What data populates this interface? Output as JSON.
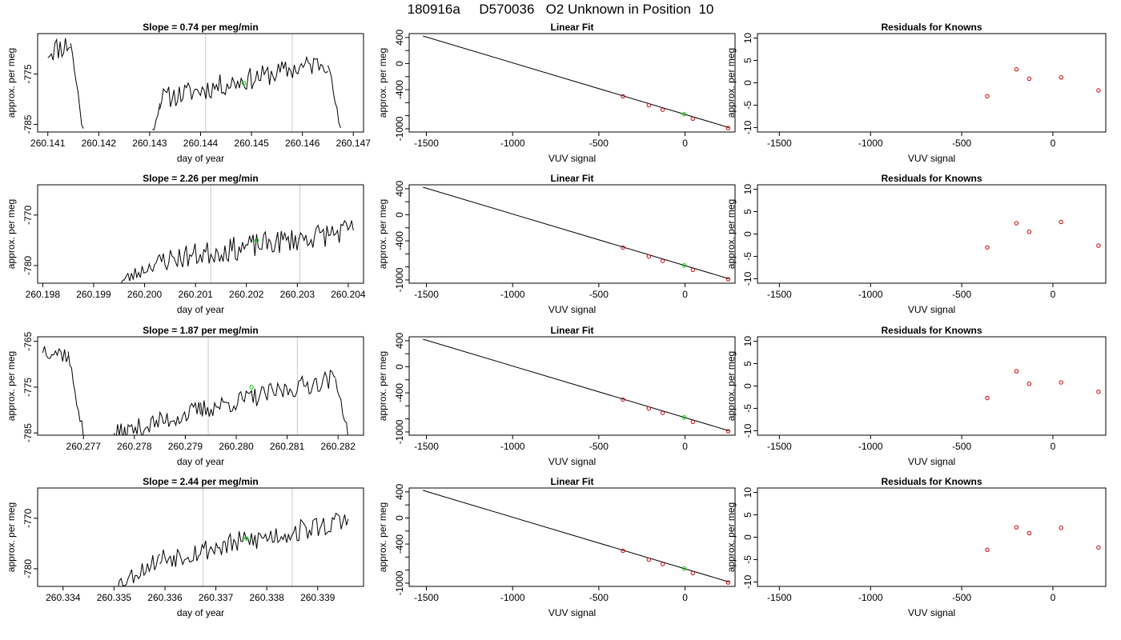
{
  "header": {
    "title": "180916a     D570036   O2 Unknown in Position  10"
  },
  "colors": {
    "series_line": "#000000",
    "unknown_point": "#00cc00",
    "known_point": "#cc0000",
    "marker_line": "#c8c8c8",
    "fit_line": "#000000"
  },
  "chart_data": [
    {
      "type": "line",
      "title": "Slope =  0.74  per meg/min",
      "xlabel": "day of year",
      "ylabel": "approx. per meg",
      "xlim": [
        260.1408,
        260.1472
      ],
      "ylim": [
        -786.5,
        -767.0
      ],
      "xticks": [
        260.141,
        260.142,
        260.143,
        260.144,
        260.145,
        260.146,
        260.147
      ],
      "xtick_labels": [
        "260.141",
        "260.142",
        "260.143",
        "260.144",
        "260.145",
        "260.146",
        "260.147"
      ],
      "yticks": [
        -785,
        -775
      ],
      "ytick_labels": [
        "-785",
        "-775"
      ],
      "vlines": [
        260.1441,
        260.1458
      ],
      "unknown_point": {
        "x": 260.14485,
        "y": -776.8
      },
      "series_seed": 11,
      "segments": [
        {
          "x0": 260.141,
          "x1": 260.14145,
          "y0": -770.5,
          "y1": -769.0,
          "noise": 2.5
        },
        {
          "x0": 260.14145,
          "x1": 260.1417,
          "y0": -769.0,
          "y1": -786.5,
          "noise": 1.5
        },
        {
          "x0": 260.14305,
          "x1": 260.1432,
          "y0": -786.5,
          "y1": -781.0,
          "noise": 1.0
        },
        {
          "x0": 260.1432,
          "x1": 260.1465,
          "y0": -780.0,
          "y1": -772.5,
          "noise": 2.2
        },
        {
          "x0": 260.1465,
          "x1": 260.14675,
          "y0": -772.5,
          "y1": -786.5,
          "noise": 1.0
        }
      ]
    },
    {
      "type": "scatter",
      "title": "Linear Fit",
      "xlabel": "VUV signal",
      "ylabel": "approx. per meg",
      "xlim": [
        -1600,
        290
      ],
      "ylim": [
        -1050,
        460
      ],
      "xticks": [
        -1500,
        -1000,
        -500,
        0
      ],
      "xtick_labels": [
        "-1500",
        "-1000",
        "-500",
        "0"
      ],
      "yticks": [
        400,
        0,
        -400,
        -1000
      ],
      "ytick_labels": [
        "400",
        "0",
        "-400",
        "-1000"
      ],
      "ytick_minor": [
        200,
        -200,
        -600,
        -800
      ],
      "fit_line": {
        "x": [
          -1520,
          255
        ],
        "y": [
          423,
          -982
        ]
      },
      "knowns": {
        "x": [
          -360,
          -210,
          -130,
          45,
          250
        ],
        "y": [
          -504,
          -640,
          -708,
          -845,
          -989
        ]
      },
      "unknown_point": {
        "x": -5,
        "y": -777
      }
    },
    {
      "type": "scatter",
      "title": "Residuals for Knowns",
      "xlabel": "VUV signal",
      "ylabel": "approx. per meg",
      "xlim": [
        -1620,
        290
      ],
      "ylim": [
        -11,
        11
      ],
      "xticks": [
        -1500,
        -1000,
        -500,
        0
      ],
      "xtick_labels": [
        "-1500",
        "-1000",
        "-500",
        "0"
      ],
      "yticks": [
        10,
        5,
        0,
        -5,
        -10
      ],
      "ytick_labels": [
        "10",
        "5",
        "0",
        "-5",
        "-10"
      ],
      "knowns": {
        "x": [
          -360,
          -200,
          -130,
          45,
          250
        ],
        "y": [
          -3.0,
          3.0,
          0.9,
          1.2,
          -1.7
        ]
      }
    },
    {
      "type": "line",
      "title": "Slope =  2.26  per meg/min",
      "xlabel": "day of year",
      "ylabel": "approx. per meg",
      "xlim": [
        260.1979,
        260.2043
      ],
      "ylim": [
        -783.5,
        -764.0
      ],
      "xticks": [
        260.198,
        260.199,
        260.2,
        260.201,
        260.202,
        260.203,
        260.204
      ],
      "xtick_labels": [
        "260.198",
        "260.199",
        "260.200",
        "260.201",
        "260.202",
        "260.203",
        "260.204"
      ],
      "yticks": [
        -780,
        -770
      ],
      "ytick_labels": [
        "-780",
        "-770"
      ],
      "vlines": [
        260.2013,
        260.20305
      ],
      "unknown_point": {
        "x": 260.2022,
        "y": -775.0
      },
      "series_seed": 23,
      "segments": [
        {
          "x0": 260.1995,
          "x1": 260.2003,
          "y0": -783.5,
          "y1": -779.0,
          "noise": 1.5
        },
        {
          "x0": 260.2003,
          "x1": 260.2041,
          "y0": -779.0,
          "y1": -773.0,
          "noise": 2.4
        }
      ]
    },
    {
      "type": "scatter",
      "title": "Linear Fit",
      "xlabel": "VUV signal",
      "ylabel": "approx. per meg",
      "xlim": [
        -1600,
        290
      ],
      "ylim": [
        -1050,
        460
      ],
      "xticks": [
        -1500,
        -1000,
        -500,
        0
      ],
      "xtick_labels": [
        "-1500",
        "-1000",
        "-500",
        "0"
      ],
      "yticks": [
        400,
        0,
        -400,
        -1000
      ],
      "ytick_labels": [
        "400",
        "0",
        "-400",
        "-1000"
      ],
      "ytick_minor": [
        200,
        -200,
        -600,
        -800
      ],
      "fit_line": {
        "x": [
          -1520,
          255
        ],
        "y": [
          423,
          -982
        ]
      },
      "knowns": {
        "x": [
          -360,
          -210,
          -130,
          45,
          250
        ],
        "y": [
          -504,
          -640,
          -708,
          -845,
          -989
        ]
      },
      "unknown_point": {
        "x": -5,
        "y": -777
      }
    },
    {
      "type": "scatter",
      "title": "Residuals for Knowns",
      "xlabel": "VUV signal",
      "ylabel": "approx. per meg",
      "xlim": [
        -1620,
        290
      ],
      "ylim": [
        -11,
        11
      ],
      "xticks": [
        -1500,
        -1000,
        -500,
        0
      ],
      "xtick_labels": [
        "-1500",
        "-1000",
        "-500",
        "0"
      ],
      "yticks": [
        10,
        5,
        0,
        -5,
        -10
      ],
      "ytick_labels": [
        "10",
        "5",
        "0",
        "-5",
        "-10"
      ],
      "knowns": {
        "x": [
          -360,
          -200,
          -130,
          45,
          250
        ],
        "y": [
          -3.0,
          2.4,
          0.5,
          2.7,
          -2.6
        ]
      }
    },
    {
      "type": "line",
      "title": "Slope =  1.87  per meg/min",
      "xlabel": "day of year",
      "ylabel": "approx. per meg",
      "xlim": [
        260.2761,
        260.2825
      ],
      "ylim": [
        -785.5,
        -764.0
      ],
      "xticks": [
        260.277,
        260.278,
        260.279,
        260.28,
        260.281,
        260.282
      ],
      "xtick_labels": [
        "260.277",
        "260.278",
        "260.279",
        "260.280",
        "260.281",
        "260.282"
      ],
      "yticks": [
        -785,
        -775,
        -765
      ],
      "ytick_labels": [
        "-785",
        "-775",
        "-765"
      ],
      "vlines": [
        260.27945,
        260.2812
      ],
      "unknown_point": {
        "x": 260.2803,
        "y": -775.0
      },
      "series_seed": 37,
      "segments": [
        {
          "x0": 260.2762,
          "x1": 260.2767,
          "y0": -766.5,
          "y1": -768.0,
          "noise": 2.0
        },
        {
          "x0": 260.2767,
          "x1": 260.277,
          "y0": -768.0,
          "y1": -785.5,
          "noise": 1.5
        },
        {
          "x0": 260.2776,
          "x1": 260.2793,
          "y0": -785.5,
          "y1": -780.0,
          "noise": 2.2
        },
        {
          "x0": 260.2793,
          "x1": 260.28195,
          "y0": -780.0,
          "y1": -773.0,
          "noise": 2.2
        },
        {
          "x0": 260.28195,
          "x1": 260.2822,
          "y0": -773.0,
          "y1": -785.5,
          "noise": 1.0
        }
      ]
    },
    {
      "type": "scatter",
      "title": "Linear Fit",
      "xlabel": "VUV signal",
      "ylabel": "approx. per meg",
      "xlim": [
        -1600,
        290
      ],
      "ylim": [
        -1050,
        460
      ],
      "xticks": [
        -1500,
        -1000,
        -500,
        0
      ],
      "xtick_labels": [
        "-1500",
        "-1000",
        "-500",
        "0"
      ],
      "yticks": [
        400,
        0,
        -400,
        -1000
      ],
      "ytick_labels": [
        "400",
        "0",
        "-400",
        "-1000"
      ],
      "ytick_minor": [
        200,
        -200,
        -600,
        -800
      ],
      "fit_line": {
        "x": [
          -1520,
          255
        ],
        "y": [
          423,
          -982
        ]
      },
      "knowns": {
        "x": [
          -360,
          -210,
          -130,
          45,
          250
        ],
        "y": [
          -504,
          -640,
          -708,
          -845,
          -989
        ]
      },
      "unknown_point": {
        "x": -5,
        "y": -777
      }
    },
    {
      "type": "scatter",
      "title": "Residuals for Knowns",
      "xlabel": "VUV signal",
      "ylabel": "approx. per meg",
      "xlim": [
        -1620,
        290
      ],
      "ylim": [
        -11,
        11
      ],
      "xticks": [
        -1500,
        -1000,
        -500,
        0
      ],
      "xtick_labels": [
        "-1500",
        "-1000",
        "-500",
        "0"
      ],
      "yticks": [
        10,
        5,
        0,
        -5,
        -10
      ],
      "ytick_labels": [
        "10",
        "5",
        "0",
        "-5",
        "-10"
      ],
      "knowns": {
        "x": [
          -360,
          -200,
          -130,
          45,
          250
        ],
        "y": [
          -2.7,
          3.3,
          0.5,
          0.8,
          -1.3
        ]
      }
    },
    {
      "type": "line",
      "title": "Slope =  2.44  per meg/min",
      "xlabel": "day of year",
      "ylabel": "approx. per meg",
      "xlim": [
        260.3335,
        260.3399
      ],
      "ylim": [
        -783.5,
        -764.0
      ],
      "xticks": [
        260.334,
        260.335,
        260.336,
        260.337,
        260.338,
        260.339
      ],
      "xtick_labels": [
        "260.334",
        "260.335",
        "260.336",
        "260.337",
        "260.338",
        "260.339"
      ],
      "yticks": [
        -780,
        -770
      ],
      "ytick_labels": [
        "-780",
        "-770"
      ],
      "vlines": [
        260.33675,
        260.3385
      ],
      "unknown_point": {
        "x": 260.3376,
        "y": -774.0
      },
      "series_seed": 53,
      "segments": [
        {
          "x0": 260.335,
          "x1": 260.3359,
          "y0": -783.5,
          "y1": -778.0,
          "noise": 1.8
        },
        {
          "x0": 260.3359,
          "x1": 260.3396,
          "y0": -778.0,
          "y1": -770.5,
          "noise": 2.3
        }
      ]
    },
    {
      "type": "scatter",
      "title": "Linear Fit",
      "xlabel": "VUV signal",
      "ylabel": "approx. per meg",
      "xlim": [
        -1600,
        290
      ],
      "ylim": [
        -1050,
        460
      ],
      "xticks": [
        -1500,
        -1000,
        -500,
        0
      ],
      "xtick_labels": [
        "-1500",
        "-1000",
        "-500",
        "0"
      ],
      "yticks": [
        400,
        0,
        -400,
        -1000
      ],
      "ytick_labels": [
        "400",
        "0",
        "-400",
        "-1000"
      ],
      "ytick_minor": [
        200,
        -200,
        -600,
        -800
      ],
      "fit_line": {
        "x": [
          -1520,
          255
        ],
        "y": [
          423,
          -982
        ]
      },
      "knowns": {
        "x": [
          -360,
          -210,
          -130,
          45,
          250
        ],
        "y": [
          -504,
          -640,
          -708,
          -845,
          -989
        ]
      },
      "unknown_point": {
        "x": -5,
        "y": -777
      }
    },
    {
      "type": "scatter",
      "title": "Residuals for Knowns",
      "xlabel": "VUV signal",
      "ylabel": "approx. per meg",
      "xlim": [
        -1620,
        290
      ],
      "ylim": [
        -11,
        11
      ],
      "xticks": [
        -1500,
        -1000,
        -500,
        0
      ],
      "xtick_labels": [
        "-1500",
        "-1000",
        "-500",
        "0"
      ],
      "yticks": [
        10,
        5,
        0,
        -5,
        -10
      ],
      "ytick_labels": [
        "10",
        "5",
        "0",
        "-5",
        "-10"
      ],
      "knowns": {
        "x": [
          -360,
          -200,
          -130,
          45,
          250
        ],
        "y": [
          -2.8,
          2.2,
          0.9,
          2.1,
          -2.3
        ]
      }
    }
  ]
}
